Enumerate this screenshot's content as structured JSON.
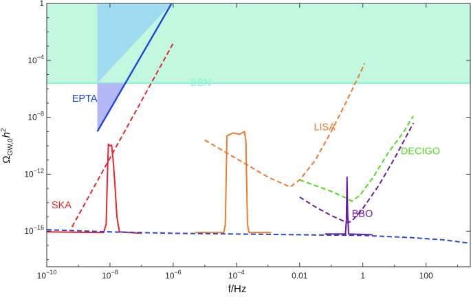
{
  "chart_data": {
    "type": "line",
    "title": "",
    "xlabel": "f/Hz",
    "ylabel_main": "Ω",
    "ylabel_sub": "GW,0",
    "ylabel_h": "h",
    "ylabel_sup": "2",
    "x_log": true,
    "y_log": true,
    "xlim_log10": [
      -10,
      3.4
    ],
    "ylim_log10": [
      -18.5,
      0
    ],
    "grid": false,
    "x_ticks": [
      {
        "exp": -10,
        "base": "10",
        "sup": "−10"
      },
      {
        "exp": -8,
        "base": "10",
        "sup": "−8"
      },
      {
        "exp": -6,
        "base": "10",
        "sup": "−6"
      },
      {
        "exp": -4,
        "base": "10",
        "sup": "−4"
      },
      {
        "exp": -2,
        "base": "0.01",
        "sup": ""
      },
      {
        "exp": 0,
        "base": "1",
        "sup": ""
      },
      {
        "exp": 2,
        "base": "100",
        "sup": ""
      }
    ],
    "y_ticks": [
      {
        "exp": 0,
        "base": "1",
        "sup": ""
      },
      {
        "exp": -4,
        "base": "10",
        "sup": "−4"
      },
      {
        "exp": -8,
        "base": "10",
        "sup": "−8"
      },
      {
        "exp": -12,
        "base": "10",
        "sup": "−12"
      },
      {
        "exp": -16,
        "base": "10",
        "sup": "−16"
      }
    ],
    "regions": [
      {
        "name": "BBN",
        "color": "#c2f7e0",
        "edge_color": "#8ff5cf",
        "y_min_log10": -5.6,
        "y_max_log10": 0,
        "x_min_log10": -10,
        "x_max_log10": 3.4
      },
      {
        "name": "EPTA",
        "color": "#9fdcf2",
        "polygon_log10": [
          [
            -8.4,
            0
          ],
          [
            -6.05,
            0
          ],
          [
            -8.4,
            -5.6
          ]
        ]
      },
      {
        "name": "EPTA",
        "color": "#b4b8f4",
        "polygon_log10": [
          [
            -8.4,
            -5.6
          ],
          [
            -7.5,
            -5.6
          ],
          [
            -8.4,
            -9.0
          ]
        ]
      }
    ],
    "series": [
      {
        "name": "EPTA",
        "color": "#1c44e0",
        "style": "solid",
        "width": 2.4,
        "points_log10": [
          [
            -8.4,
            -9.0
          ],
          [
            -6.05,
            0
          ]
        ]
      },
      {
        "name": "SKA",
        "color": "#e8242c",
        "style": "dashed",
        "width": 2,
        "points_log10": [
          [
            -9.2,
            -15.7
          ],
          [
            -6.0,
            -2.8
          ]
        ]
      },
      {
        "name": "SKA",
        "color": "#e8242c",
        "style": "solid",
        "width": 2,
        "points_log10": [
          [
            -10,
            -16.05
          ],
          [
            -8.2,
            -16.1
          ],
          [
            -8.12,
            -15.5
          ],
          [
            -8.08,
            -12.0
          ],
          [
            -8.05,
            -9.9
          ],
          [
            -8.0,
            -10.0
          ],
          [
            -7.95,
            -9.95
          ],
          [
            -7.9,
            -11.0
          ],
          [
            -7.85,
            -12.5
          ],
          [
            -7.78,
            -15.0
          ],
          [
            -7.7,
            -16.05
          ],
          [
            -7.0,
            -16.15
          ]
        ]
      },
      {
        "name": "LISA",
        "color": "#f07a2a",
        "style": "dashed",
        "width": 2,
        "points_log10": [
          [
            -5.0,
            -9.6
          ],
          [
            -4.0,
            -10.9
          ],
          [
            -3.0,
            -12.2
          ],
          [
            -2.5,
            -12.7
          ],
          [
            -2.3,
            -12.9
          ],
          [
            -2.0,
            -12.4
          ],
          [
            -1.5,
            -11.0
          ],
          [
            -1.0,
            -9.0
          ],
          [
            -0.5,
            -6.8
          ],
          [
            0.0,
            -4.5
          ],
          [
            0.05,
            -4.2
          ]
        ]
      },
      {
        "name": "LISA",
        "color": "#f07a2a",
        "style": "solid",
        "width": 2,
        "points_log10": [
          [
            -5.3,
            -16.1
          ],
          [
            -4.4,
            -16.1
          ],
          [
            -4.35,
            -15.5
          ],
          [
            -4.3,
            -9.3
          ],
          [
            -4.1,
            -9.1
          ],
          [
            -3.9,
            -9.2
          ],
          [
            -3.75,
            -9.0
          ],
          [
            -3.7,
            -9.6
          ],
          [
            -3.65,
            -15.5
          ],
          [
            -3.6,
            -16.1
          ],
          [
            -2.9,
            -16.1
          ]
        ]
      },
      {
        "name": "DECIGO",
        "color": "#4fdc1d",
        "style": "dashed",
        "width": 2,
        "points_log10": [
          [
            -2.0,
            -12.4
          ],
          [
            -1.0,
            -13.2
          ],
          [
            -0.5,
            -13.7
          ],
          [
            -0.35,
            -13.9
          ],
          [
            -0.1,
            -13.5
          ],
          [
            0.3,
            -12.3
          ],
          [
            0.8,
            -10.5
          ],
          [
            1.3,
            -9.0
          ],
          [
            1.6,
            -7.9
          ]
        ]
      },
      {
        "name": "BBO",
        "color": "#6d18a3",
        "style": "dashed",
        "width": 2,
        "points_log10": [
          [
            -2.0,
            -13.6
          ],
          [
            -1.5,
            -14.3
          ],
          [
            -1.0,
            -14.9
          ],
          [
            -0.6,
            -15.3
          ],
          [
            -0.5,
            -15.4
          ],
          [
            -0.35,
            -15.3
          ],
          [
            0.0,
            -14.4
          ],
          [
            0.5,
            -12.8
          ],
          [
            1.0,
            -10.9
          ],
          [
            1.6,
            -8.4
          ]
        ]
      },
      {
        "name": "BBO",
        "color": "#6d18a3",
        "style": "solid",
        "width": 2,
        "points_log10": [
          [
            -1.2,
            -16.2
          ],
          [
            -0.55,
            -16.2
          ],
          [
            -0.52,
            -15.2
          ],
          [
            -0.5,
            -12.2
          ],
          [
            -0.48,
            -14.8
          ],
          [
            -0.45,
            -16.2
          ],
          [
            0.3,
            -16.25
          ]
        ]
      },
      {
        "name": "",
        "color": "#2a44d4",
        "style": "dashed",
        "width": 2,
        "points_log10": [
          [
            -10,
            -15.9
          ],
          [
            -8,
            -16.05
          ],
          [
            -6,
            -16.15
          ],
          [
            -4,
            -16.2
          ],
          [
            -2,
            -16.25
          ],
          [
            0,
            -16.3
          ],
          [
            1.5,
            -16.45
          ],
          [
            2.5,
            -16.6
          ],
          [
            3.4,
            -16.85
          ]
        ]
      }
    ],
    "annotations": [
      {
        "text": "EPTA",
        "color": "#1c44e0",
        "at_log10": [
          -9.2,
          -6.9
        ]
      },
      {
        "text": "BBN",
        "color": "#8ff5cf",
        "at_log10": [
          -5.45,
          -5.8
        ]
      },
      {
        "text": "LISA",
        "color": "#f07a2a",
        "at_log10": [
          -1.55,
          -8.9
        ]
      },
      {
        "text": "DECIGO",
        "color": "#4fdc1d",
        "at_log10": [
          1.2,
          -10.6
        ]
      },
      {
        "text": "SKA",
        "color": "#e8242c",
        "at_log10": [
          -9.85,
          -14.4
        ]
      },
      {
        "text": "BBO",
        "color": "#6d18a3",
        "at_log10": [
          -0.35,
          -15.0
        ]
      }
    ]
  }
}
